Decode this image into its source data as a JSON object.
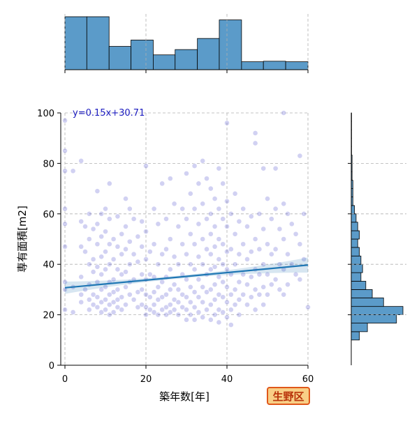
{
  "badge": "生野区",
  "chart_data": {
    "type": "scatter",
    "xlabel": "築年数[年]",
    "ylabel": "専有面積[m2]",
    "xlim": [
      0,
      60
    ],
    "ylim": [
      0,
      100
    ],
    "xticks": [
      0,
      20,
      40,
      60
    ],
    "yticks": [
      0,
      20,
      40,
      60,
      80,
      100
    ],
    "grid": true,
    "regression": {
      "label": "y=0.15x+30.71",
      "slope": 0.15,
      "intercept": 30.71
    },
    "point_color": "#1a1abf",
    "line_color": "#1f77b4",
    "hist_color": "#5b9bc9",
    "points": [
      [
        0,
        97
      ],
      [
        0,
        85
      ],
      [
        0,
        77
      ],
      [
        0,
        62
      ],
      [
        0,
        56
      ],
      [
        0,
        47
      ],
      [
        0,
        33
      ],
      [
        0,
        30
      ],
      [
        0,
        22
      ],
      [
        2,
        77
      ],
      [
        2,
        31
      ],
      [
        2,
        21
      ],
      [
        4,
        81
      ],
      [
        4,
        57
      ],
      [
        4,
        47
      ],
      [
        4,
        35
      ],
      [
        4,
        28
      ],
      [
        4,
        25
      ],
      [
        5,
        55
      ],
      [
        5,
        45
      ],
      [
        5,
        30
      ],
      [
        6,
        60
      ],
      [
        6,
        50
      ],
      [
        6,
        40
      ],
      [
        6,
        32
      ],
      [
        6,
        26
      ],
      [
        6,
        22
      ],
      [
        7,
        54
      ],
      [
        7,
        42
      ],
      [
        7,
        37
      ],
      [
        7,
        28
      ],
      [
        7,
        24
      ],
      [
        8,
        69
      ],
      [
        8,
        56
      ],
      [
        8,
        48
      ],
      [
        8,
        39
      ],
      [
        8,
        33
      ],
      [
        8,
        27
      ],
      [
        8,
        23
      ],
      [
        9,
        60
      ],
      [
        9,
        51
      ],
      [
        9,
        43
      ],
      [
        9,
        36
      ],
      [
        9,
        30
      ],
      [
        9,
        25
      ],
      [
        9,
        21
      ],
      [
        10,
        62
      ],
      [
        10,
        53
      ],
      [
        10,
        45
      ],
      [
        10,
        38
      ],
      [
        10,
        31
      ],
      [
        10,
        26
      ],
      [
        10,
        22
      ],
      [
        11,
        72
      ],
      [
        11,
        58
      ],
      [
        11,
        48
      ],
      [
        11,
        40
      ],
      [
        11,
        33
      ],
      [
        11,
        28
      ],
      [
        11,
        24
      ],
      [
        11,
        20
      ],
      [
        12,
        50
      ],
      [
        12,
        42
      ],
      [
        12,
        34
      ],
      [
        12,
        29
      ],
      [
        12,
        25
      ],
      [
        12,
        21
      ],
      [
        13,
        59
      ],
      [
        13,
        47
      ],
      [
        13,
        38
      ],
      [
        13,
        30
      ],
      [
        13,
        26
      ],
      [
        13,
        23
      ],
      [
        14,
        52
      ],
      [
        14,
        44
      ],
      [
        14,
        36
      ],
      [
        14,
        27
      ],
      [
        14,
        22
      ],
      [
        15,
        66
      ],
      [
        15,
        55
      ],
      [
        15,
        46
      ],
      [
        15,
        37
      ],
      [
        15,
        31
      ],
      [
        15,
        24
      ],
      [
        16,
        62
      ],
      [
        16,
        49
      ],
      [
        16,
        40
      ],
      [
        16,
        33
      ],
      [
        16,
        28
      ],
      [
        17,
        58
      ],
      [
        17,
        44
      ],
      [
        17,
        34
      ],
      [
        17,
        26
      ],
      [
        18,
        51
      ],
      [
        18,
        41
      ],
      [
        18,
        29
      ],
      [
        18,
        23
      ],
      [
        19,
        57
      ],
      [
        19,
        47
      ],
      [
        19,
        36
      ],
      [
        19,
        30
      ],
      [
        19,
        24
      ],
      [
        20,
        79
      ],
      [
        20,
        53
      ],
      [
        20,
        42
      ],
      [
        20,
        34
      ],
      [
        20,
        28
      ],
      [
        20,
        23
      ],
      [
        20,
        20
      ],
      [
        21,
        45
      ],
      [
        21,
        36
      ],
      [
        21,
        27
      ],
      [
        21,
        22
      ],
      [
        22,
        62
      ],
      [
        22,
        48
      ],
      [
        22,
        35
      ],
      [
        22,
        29
      ],
      [
        22,
        24
      ],
      [
        22,
        21
      ],
      [
        23,
        56
      ],
      [
        23,
        40
      ],
      [
        23,
        31
      ],
      [
        23,
        26
      ],
      [
        23,
        20
      ],
      [
        24,
        72
      ],
      [
        24,
        44
      ],
      [
        24,
        33
      ],
      [
        24,
        27
      ],
      [
        24,
        22
      ],
      [
        25,
        58
      ],
      [
        25,
        46
      ],
      [
        25,
        35
      ],
      [
        25,
        28
      ],
      [
        25,
        23
      ],
      [
        25,
        20
      ],
      [
        26,
        74
      ],
      [
        26,
        50
      ],
      [
        26,
        38
      ],
      [
        26,
        30
      ],
      [
        26,
        24
      ],
      [
        26,
        21
      ],
      [
        27,
        64
      ],
      [
        27,
        43
      ],
      [
        27,
        32
      ],
      [
        27,
        26
      ],
      [
        27,
        22
      ],
      [
        28,
        55
      ],
      [
        28,
        40
      ],
      [
        28,
        30
      ],
      [
        28,
        25
      ],
      [
        28,
        20
      ],
      [
        29,
        62
      ],
      [
        29,
        48
      ],
      [
        29,
        36
      ],
      [
        29,
        28
      ],
      [
        29,
        23
      ],
      [
        30,
        76
      ],
      [
        30,
        58
      ],
      [
        30,
        44
      ],
      [
        30,
        34
      ],
      [
        30,
        27
      ],
      [
        30,
        22
      ],
      [
        30,
        18
      ],
      [
        31,
        68
      ],
      [
        31,
        52
      ],
      [
        31,
        40
      ],
      [
        31,
        31
      ],
      [
        31,
        25
      ],
      [
        31,
        20
      ],
      [
        32,
        79
      ],
      [
        32,
        62
      ],
      [
        32,
        48
      ],
      [
        32,
        38
      ],
      [
        32,
        29
      ],
      [
        32,
        23
      ],
      [
        32,
        18
      ],
      [
        33,
        72
      ],
      [
        33,
        56
      ],
      [
        33,
        43
      ],
      [
        33,
        34
      ],
      [
        33,
        27
      ],
      [
        33,
        21
      ],
      [
        34,
        81
      ],
      [
        34,
        64
      ],
      [
        34,
        50
      ],
      [
        34,
        40
      ],
      [
        34,
        31
      ],
      [
        34,
        25
      ],
      [
        34,
        19
      ],
      [
        35,
        74
      ],
      [
        35,
        58
      ],
      [
        35,
        46
      ],
      [
        35,
        36
      ],
      [
        35,
        29
      ],
      [
        35,
        22
      ],
      [
        36,
        70
      ],
      [
        36,
        60
      ],
      [
        36,
        52
      ],
      [
        36,
        44
      ],
      [
        36,
        38
      ],
      [
        36,
        30
      ],
      [
        36,
        24
      ],
      [
        36,
        18
      ],
      [
        37,
        66
      ],
      [
        37,
        55
      ],
      [
        37,
        47
      ],
      [
        37,
        39
      ],
      [
        37,
        32
      ],
      [
        37,
        26
      ],
      [
        37,
        20
      ],
      [
        38,
        78
      ],
      [
        38,
        62
      ],
      [
        38,
        50
      ],
      [
        38,
        42
      ],
      [
        38,
        35
      ],
      [
        38,
        28
      ],
      [
        38,
        22
      ],
      [
        38,
        17
      ],
      [
        39,
        72
      ],
      [
        39,
        58
      ],
      [
        39,
        48
      ],
      [
        39,
        40
      ],
      [
        39,
        33
      ],
      [
        39,
        27
      ],
      [
        39,
        21
      ],
      [
        40,
        96
      ],
      [
        40,
        65
      ],
      [
        40,
        55
      ],
      [
        40,
        45
      ],
      [
        40,
        38
      ],
      [
        40,
        31
      ],
      [
        40,
        25
      ],
      [
        40,
        19
      ],
      [
        41,
        60
      ],
      [
        41,
        46
      ],
      [
        41,
        36
      ],
      [
        41,
        28
      ],
      [
        41,
        22
      ],
      [
        41,
        16
      ],
      [
        42,
        68
      ],
      [
        42,
        52
      ],
      [
        42,
        40
      ],
      [
        42,
        30
      ],
      [
        42,
        24
      ],
      [
        43,
        57
      ],
      [
        43,
        44
      ],
      [
        43,
        33
      ],
      [
        43,
        26
      ],
      [
        43,
        20
      ],
      [
        44,
        62
      ],
      [
        44,
        48
      ],
      [
        44,
        36
      ],
      [
        44,
        28
      ],
      [
        45,
        55
      ],
      [
        45,
        42
      ],
      [
        45,
        32
      ],
      [
        45,
        24
      ],
      [
        46,
        59
      ],
      [
        46,
        45
      ],
      [
        46,
        35
      ],
      [
        46,
        27
      ],
      [
        47,
        92
      ],
      [
        47,
        88
      ],
      [
        47,
        50
      ],
      [
        47,
        38
      ],
      [
        47,
        30
      ],
      [
        47,
        22
      ],
      [
        48,
        60
      ],
      [
        48,
        46
      ],
      [
        48,
        36
      ],
      [
        48,
        28
      ],
      [
        49,
        78
      ],
      [
        49,
        54
      ],
      [
        49,
        40
      ],
      [
        49,
        31
      ],
      [
        49,
        24
      ],
      [
        50,
        66
      ],
      [
        50,
        48
      ],
      [
        50,
        36
      ],
      [
        50,
        28
      ],
      [
        51,
        58
      ],
      [
        51,
        44
      ],
      [
        51,
        32
      ],
      [
        52,
        78
      ],
      [
        52,
        62
      ],
      [
        52,
        46
      ],
      [
        52,
        34
      ],
      [
        53,
        54
      ],
      [
        53,
        40
      ],
      [
        53,
        30
      ],
      [
        54,
        100
      ],
      [
        54,
        64
      ],
      [
        54,
        50
      ],
      [
        54,
        38
      ],
      [
        54,
        28
      ],
      [
        55,
        60
      ],
      [
        55,
        44
      ],
      [
        55,
        32
      ],
      [
        56,
        56
      ],
      [
        56,
        40
      ],
      [
        57,
        52
      ],
      [
        57,
        36
      ],
      [
        58,
        83
      ],
      [
        58,
        48
      ],
      [
        58,
        34
      ],
      [
        59,
        60
      ],
      [
        59,
        42
      ],
      [
        60,
        23
      ]
    ],
    "x_hist": {
      "edges": [
        0,
        5.4,
        10.9,
        16.3,
        21.8,
        27.2,
        32.7,
        38.1,
        43.6,
        49,
        54.5,
        60
      ],
      "counts": [
        100,
        100,
        44,
        56,
        28,
        38,
        59,
        94,
        15,
        16,
        15
      ]
    },
    "y_hist": {
      "edges": [
        10,
        13.3,
        16.7,
        20,
        23.3,
        26.7,
        30,
        33.3,
        36.7,
        40,
        43.3,
        46.7,
        50,
        53.3,
        56.7,
        60,
        63.3,
        66.7,
        70,
        73.3,
        76.7,
        80,
        83.3,
        86.7,
        90,
        93.3,
        96.7,
        100
      ],
      "counts": [
        5,
        10,
        28,
        32,
        20,
        13,
        9,
        6,
        7,
        6,
        5,
        4,
        5,
        4,
        3,
        2,
        1,
        1,
        1,
        0.5,
        0.5,
        0.5,
        0.2,
        0.2,
        0.2,
        0.2,
        0.2
      ]
    }
  }
}
